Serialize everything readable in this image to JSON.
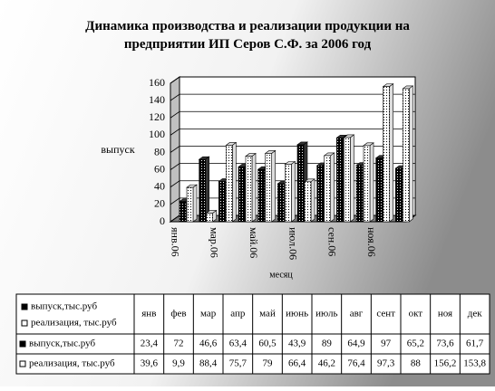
{
  "chart_data": {
    "type": "bar3d",
    "title": "Динамика производства и реализации продукции  на предприятии ИП Серов С.Ф. за 2006 год",
    "y_label": "выпуск",
    "x_label": "месяц",
    "categories": [
      "янв",
      "фев",
      "мар",
      "апр",
      "май",
      "июнь",
      "июль",
      "авг",
      "сент",
      "окт",
      "ноя",
      "дек"
    ],
    "x_tick_labels": [
      "янв.06",
      null,
      "мар.06",
      null,
      "май.06",
      null,
      "июл.06",
      null,
      "сен.06",
      null,
      "ноя.06",
      null
    ],
    "series": [
      {
        "name": "выпуск,тыс.руб",
        "color": "#000000",
        "values": [
          23.4,
          72,
          46.6,
          63.4,
          60.5,
          43.9,
          89,
          64.9,
          97,
          65.2,
          73.6,
          61.7
        ],
        "value_labels": [
          "23,4",
          "72",
          "46,6",
          "63,4",
          "60,5",
          "43,9",
          "89",
          "64,9",
          "97",
          "65,2",
          "73,6",
          "61,7"
        ]
      },
      {
        "name": "реализация, тыс.руб",
        "color": "#ffffff",
        "values": [
          39.6,
          9.9,
          88.4,
          75.7,
          79,
          66.4,
          46.2,
          76.4,
          97.3,
          88,
          156.2,
          153.8
        ],
        "value_labels": [
          "39,6",
          "9,9",
          "88,4",
          "75,7",
          "79",
          "66,4",
          "46,2",
          "76,4",
          "97,3",
          "88",
          "156,2",
          "153,8"
        ]
      }
    ],
    "ylim": [
      0,
      160
    ],
    "yticks": [
      0,
      20,
      40,
      60,
      80,
      100,
      120,
      140,
      160
    ],
    "grid": true
  }
}
